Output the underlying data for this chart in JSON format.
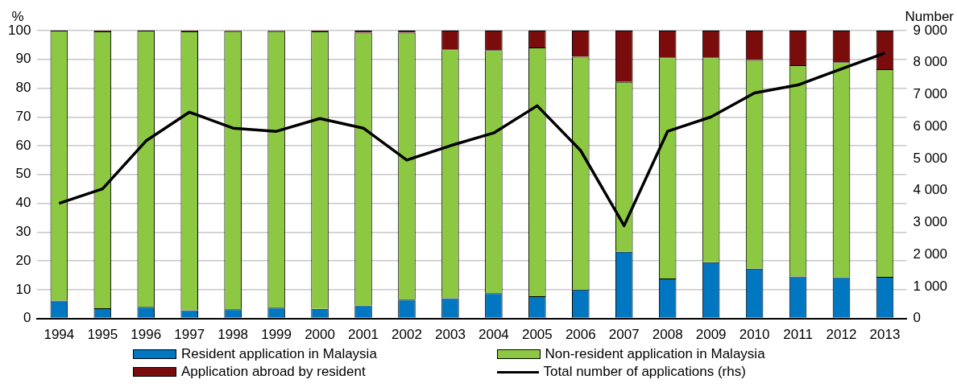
{
  "chart_data": {
    "type": "bar",
    "stacked": true,
    "ylabel": "%",
    "y2label": "Number",
    "categories": [
      "1994",
      "1995",
      "1996",
      "1997",
      "1998",
      "1999",
      "2000",
      "2001",
      "2002",
      "2003",
      "2004",
      "2005",
      "2006",
      "2007",
      "2008",
      "2009",
      "2010",
      "2011",
      "2012",
      "2013"
    ],
    "series": [
      {
        "name": "Resident application in Malaysia",
        "color": "#0077c0",
        "values": [
          6.2,
          3.5,
          4,
          2.8,
          3.2,
          3.7,
          3.3,
          4.5,
          6.5,
          7,
          8.8,
          7.7,
          10,
          23.2,
          13.9,
          19.5,
          17.3,
          14.6,
          14.3,
          14.4
        ]
      },
      {
        "name": "Non-resident application in Malaysia",
        "color": "#8cc841",
        "values": [
          93.8,
          96.2,
          96,
          96.9,
          96.6,
          96.1,
          96.4,
          94.8,
          92.8,
          86.5,
          84.4,
          86.4,
          80.9,
          59,
          76.8,
          71.2,
          72.5,
          73.4,
          74.7,
          72.2
        ]
      },
      {
        "name": "Application abroad by resident",
        "color": "#7b0c0c",
        "values": [
          0,
          0.3,
          0,
          0.3,
          0.2,
          0.2,
          0.3,
          0.7,
          0.7,
          6.5,
          6.8,
          5.9,
          9.1,
          17.8,
          9.3,
          9.3,
          10.2,
          12,
          11,
          13.4
        ]
      },
      {
        "name": "Total number of applications (rhs)",
        "type": "line",
        "axis": "y2",
        "color": "#000000",
        "values": [
          3600,
          4050,
          5550,
          6450,
          5950,
          5850,
          6250,
          5950,
          4950,
          5400,
          5800,
          6650,
          5250,
          2900,
          5850,
          6300,
          7050,
          7300,
          7800,
          8300
        ]
      }
    ],
    "ylim": [
      0,
      100
    ],
    "yticks": [
      0,
      10,
      20,
      30,
      40,
      50,
      60,
      70,
      80,
      90,
      100
    ],
    "y2lim": [
      0,
      9000
    ],
    "y2ticks": [
      0,
      {
        "value": 1000,
        "label": "1 000"
      },
      {
        "value": 2000,
        "label": "2 000"
      },
      {
        "value": 3000,
        "label": "3 000"
      },
      {
        "value": 4000,
        "label": "4 000"
      },
      {
        "value": 5000,
        "label": "5 000"
      },
      {
        "value": 6000,
        "label": "6 000"
      },
      {
        "value": 7000,
        "label": "7 000"
      },
      {
        "value": 8000,
        "label": "8 000"
      },
      {
        "value": 9000,
        "label": "9 000"
      }
    ],
    "grid": "y",
    "legend": "bottom",
    "marker": "none",
    "line_style": "solid"
  }
}
